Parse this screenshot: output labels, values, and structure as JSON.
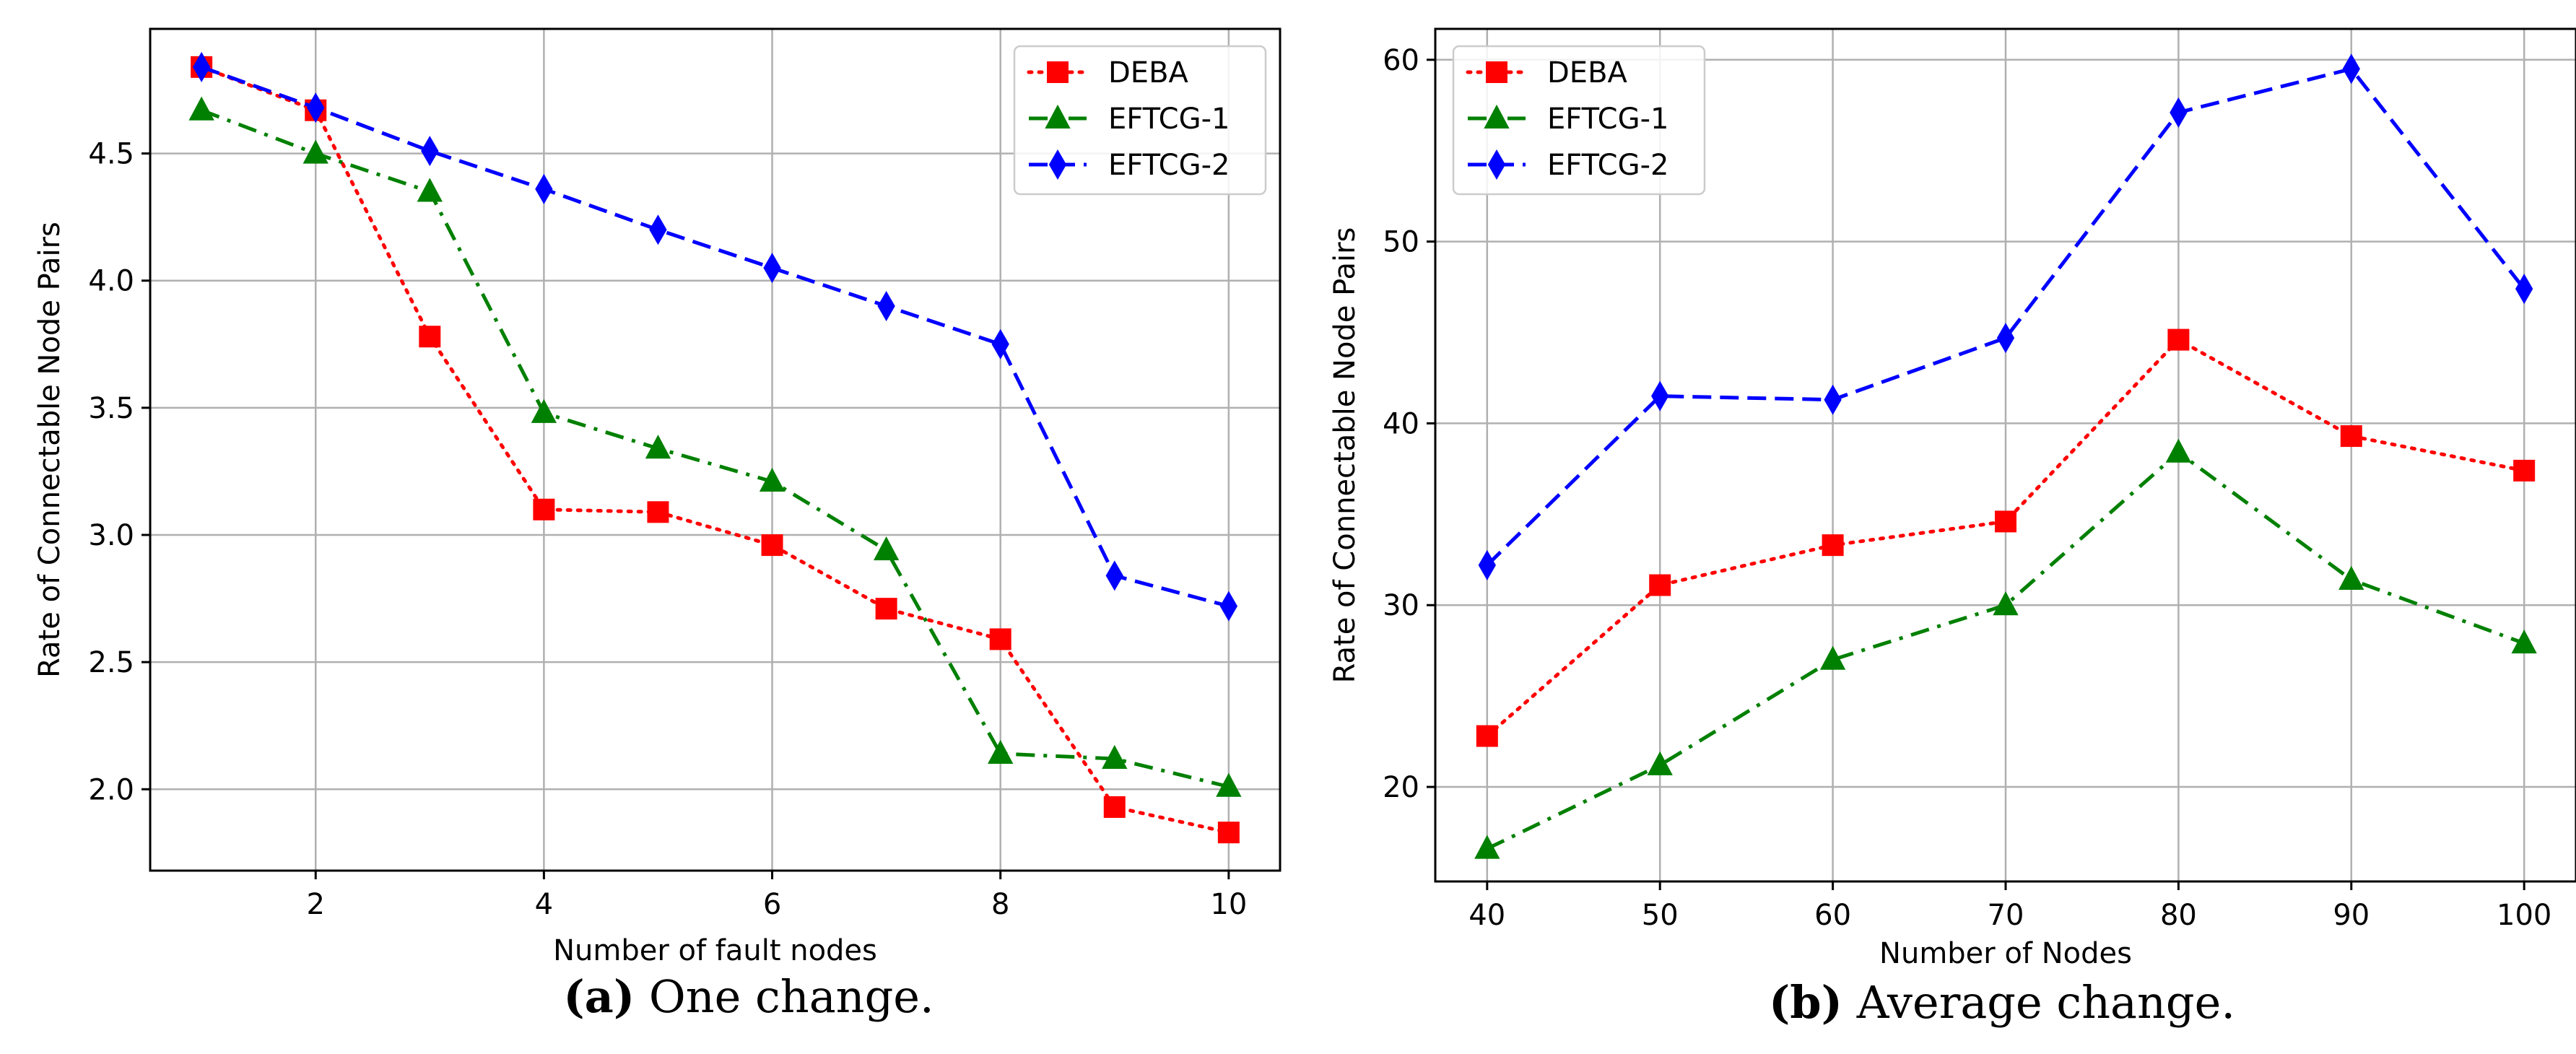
{
  "chart_data": [
    {
      "id": "a",
      "type": "line",
      "caption_label": "(a)",
      "caption_text": "One change.",
      "xlabel": "Number of fault nodes",
      "ylabel": "Rate of Connectable Node Pairs",
      "xlim": [
        0.55,
        10.45
      ],
      "ylim": [
        1.68,
        4.99
      ],
      "xticks": [
        2,
        4,
        6,
        8,
        10
      ],
      "xtick_labels": [
        "2",
        "4",
        "6",
        "8",
        "10"
      ],
      "yticks": [
        2.0,
        2.5,
        3.0,
        3.5,
        4.0,
        4.5
      ],
      "ytick_labels": [
        "2.0",
        "2.5",
        "3.0",
        "3.5",
        "4.0",
        "4.5"
      ],
      "grid": true,
      "legend_position": "top-right",
      "x": [
        1,
        2,
        3,
        4,
        5,
        6,
        7,
        8,
        9,
        10
      ],
      "series": [
        {
          "name": "DEBA",
          "color": "#ff0000",
          "linestyle": "dotted",
          "marker": "square",
          "values": [
            4.84,
            4.67,
            3.78,
            3.1,
            3.09,
            2.96,
            2.71,
            2.59,
            1.93,
            1.83
          ]
        },
        {
          "name": "EFTCG-1",
          "color": "#008000",
          "linestyle": "dashdot",
          "marker": "triangle",
          "values": [
            4.67,
            4.5,
            4.35,
            3.48,
            3.34,
            3.21,
            2.94,
            2.14,
            2.12,
            2.01
          ]
        },
        {
          "name": "EFTCG-2",
          "color": "#0000ff",
          "linestyle": "dashed",
          "marker": "diamond",
          "values": [
            4.84,
            4.68,
            4.51,
            4.36,
            4.2,
            4.05,
            3.9,
            3.75,
            2.84,
            2.72
          ]
        }
      ]
    },
    {
      "id": "b",
      "type": "line",
      "caption_label": "(b)",
      "caption_text": "Average change.",
      "xlabel": "Number of Nodes",
      "ylabel": "Rate of Connectable Node Pairs",
      "xlim": [
        37,
        103
      ],
      "ylim": [
        14.8,
        61.7
      ],
      "xticks": [
        40,
        50,
        60,
        70,
        80,
        90,
        100
      ],
      "xtick_labels": [
        "40",
        "50",
        "60",
        "70",
        "80",
        "90",
        "100"
      ],
      "yticks": [
        20,
        30,
        40,
        50,
        60
      ],
      "ytick_labels": [
        "20",
        "30",
        "40",
        "50",
        "60"
      ],
      "grid": true,
      "legend_position": "top-left",
      "x": [
        40,
        50,
        60,
        70,
        80,
        90,
        100
      ],
      "series": [
        {
          "name": "DEBA",
          "color": "#ff0000",
          "linestyle": "dotted",
          "marker": "square",
          "values": [
            22.8,
            31.1,
            33.3,
            34.6,
            44.6,
            39.3,
            37.4
          ]
        },
        {
          "name": "EFTCG-1",
          "color": "#008000",
          "linestyle": "dashdot",
          "marker": "triangle",
          "values": [
            16.6,
            21.2,
            27.0,
            30.0,
            38.4,
            31.4,
            27.9
          ]
        },
        {
          "name": "EFTCG-2",
          "color": "#0000ff",
          "linestyle": "dashed",
          "marker": "diamond",
          "values": [
            32.2,
            41.5,
            41.3,
            44.7,
            57.1,
            59.5,
            47.4
          ]
        }
      ]
    }
  ]
}
